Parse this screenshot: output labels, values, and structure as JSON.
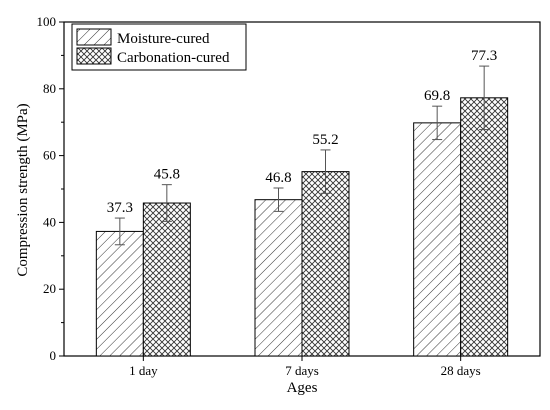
{
  "chart_data": {
    "type": "bar",
    "categories": [
      "1 day",
      "7 days",
      "28 days"
    ],
    "series": [
      {
        "name": "Moisture-cured",
        "values": [
          37.3,
          46.8,
          69.8
        ],
        "error": [
          4.0,
          3.5,
          5.0
        ],
        "labels": [
          "37.3",
          "46.8",
          "69.8"
        ],
        "pattern": "diagonal-hatch"
      },
      {
        "name": "Carbonation-cured",
        "values": [
          45.8,
          55.2,
          77.3
        ],
        "error": [
          5.5,
          6.5,
          9.5
        ],
        "labels": [
          "45.8",
          "55.2",
          "77.3"
        ],
        "pattern": "crosshatch"
      }
    ],
    "xlabel": "Ages",
    "ylabel": "Compression strength (MPa)",
    "ylim": [
      0,
      100
    ],
    "yticks": [
      "0",
      "20",
      "40",
      "60",
      "80",
      "100"
    ],
    "legend_position": "top-left",
    "grid": false,
    "colors": {
      "ink": "#000000",
      "fill": "#ffffff",
      "error_bar": "#555555"
    }
  }
}
